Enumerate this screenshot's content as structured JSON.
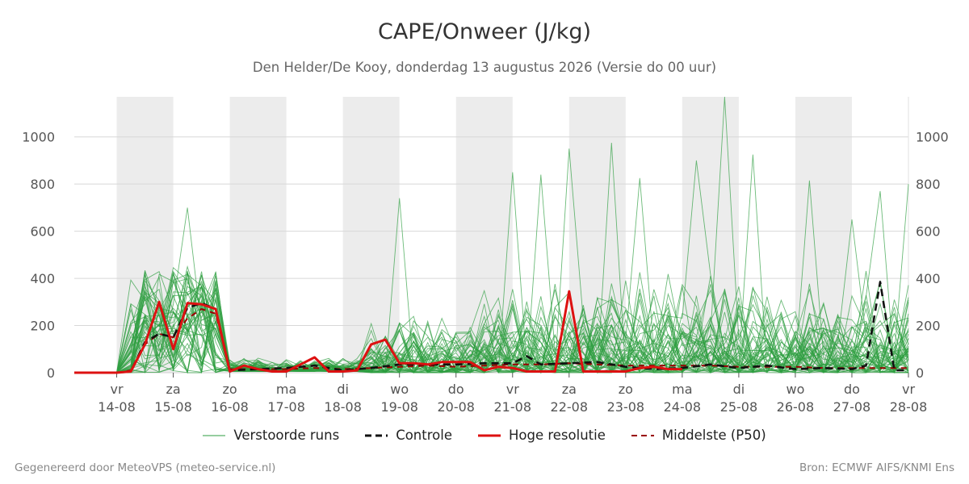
{
  "chart_data": {
    "type": "line",
    "title": "CAPE/Onweer (J/kg)",
    "subtitle": "Den Helder/De Kooy, donderdag 13 augustus 2026 (Versie do 00 uur)",
    "ylim": [
      0,
      1170
    ],
    "xlim_days": [
      -0.75,
      14.0
    ],
    "y_ticks": [
      0,
      200,
      400,
      600,
      800,
      1000
    ],
    "x_ticks": [
      {
        "day": "vr",
        "date": "14-08"
      },
      {
        "day": "za",
        "date": "15-08"
      },
      {
        "day": "zo",
        "date": "16-08"
      },
      {
        "day": "ma",
        "date": "17-08"
      },
      {
        "day": "di",
        "date": "18-08"
      },
      {
        "day": "wo",
        "date": "19-08"
      },
      {
        "day": "do",
        "date": "20-08"
      },
      {
        "day": "vr",
        "date": "21-08"
      },
      {
        "day": "za",
        "date": "22-08"
      },
      {
        "day": "zo",
        "date": "23-08"
      },
      {
        "day": "ma",
        "date": "24-08"
      },
      {
        "day": "di",
        "date": "25-08"
      },
      {
        "day": "wo",
        "date": "26-08"
      },
      {
        "day": "do",
        "date": "27-08"
      },
      {
        "day": "vr",
        "date": "28-08"
      }
    ],
    "weekend_shading": [
      [
        0,
        1
      ],
      [
        2,
        3
      ],
      [
        4,
        5
      ],
      [
        6,
        7
      ],
      [
        8,
        9
      ],
      [
        10,
        11
      ],
      [
        12,
        13
      ]
    ],
    "grid": true,
    "legend_position": "bottom",
    "series": [
      {
        "name": "Hoge resolutie",
        "color": "#dd1111",
        "x": [
          -0.75,
          -0.5,
          -0.25,
          0.0,
          0.25,
          0.5,
          0.75,
          1.0,
          1.25,
          1.5,
          1.75,
          2.0,
          2.25,
          2.5,
          2.75,
          3.0,
          3.25,
          3.5,
          3.75,
          4.0,
          4.25,
          4.5,
          4.75,
          5.0,
          5.25,
          5.5,
          5.75,
          6.0,
          6.25,
          6.5,
          6.75,
          7.0,
          7.25,
          7.5,
          7.75,
          8.0,
          8.25,
          8.5,
          8.75,
          9.0,
          9.25,
          9.5,
          9.75,
          10.0
        ],
        "values": [
          0,
          0,
          0,
          0,
          5,
          120,
          300,
          100,
          295,
          290,
          270,
          5,
          30,
          15,
          5,
          5,
          35,
          65,
          5,
          5,
          10,
          120,
          140,
          40,
          40,
          35,
          45,
          45,
          45,
          10,
          25,
          20,
          5,
          5,
          5,
          345,
          5,
          5,
          5,
          5,
          20,
          25,
          15,
          15
        ]
      },
      {
        "name": "Controle",
        "color": "#111111",
        "x": [
          -0.75,
          -0.5,
          -0.25,
          0.0,
          0.25,
          0.5,
          0.75,
          1.0,
          1.25,
          1.5,
          1.75,
          2.0,
          2.5,
          3.0,
          3.5,
          4.0,
          4.5,
          5.0,
          5.5,
          6.0,
          6.5,
          7.0,
          7.25,
          7.5,
          8.0,
          8.5,
          9.0,
          9.5,
          10.0,
          10.5,
          11.0,
          11.5,
          12.0,
          12.5,
          13.0,
          13.25,
          13.5,
          13.75,
          14.0
        ],
        "values": [
          0,
          0,
          0,
          0,
          5,
          130,
          165,
          150,
          275,
          295,
          270,
          10,
          15,
          20,
          30,
          10,
          20,
          35,
          35,
          35,
          40,
          40,
          70,
          35,
          40,
          45,
          25,
          15,
          20,
          35,
          20,
          30,
          15,
          20,
          15,
          30,
          385,
          10,
          10
        ]
      },
      {
        "name": "Middelste (P50)",
        "color": "#990000",
        "x": [
          -0.75,
          -0.5,
          -0.25,
          0.0,
          0.25,
          0.5,
          0.75,
          1.0,
          1.25,
          1.5,
          1.75,
          2.0,
          2.5,
          3.0,
          3.5,
          4.0,
          4.5,
          5.0,
          5.5,
          6.0,
          6.5,
          7.0,
          7.5,
          8.0,
          8.5,
          9.0,
          9.5,
          10.0,
          10.5,
          11.0,
          11.5,
          12.0,
          12.5,
          13.0,
          13.5,
          14.0
        ],
        "values": [
          0,
          0,
          0,
          0,
          10,
          120,
          165,
          150,
          230,
          270,
          250,
          15,
          15,
          15,
          20,
          15,
          20,
          25,
          30,
          25,
          30,
          35,
          35,
          40,
          35,
          30,
          30,
          30,
          30,
          25,
          25,
          25,
          20,
          20,
          20,
          20
        ]
      }
    ],
    "ensemble": {
      "name": "Verstoorde runs",
      "color": "#2e9e40",
      "members": 50,
      "step_days": 0.25,
      "notable_peaks": [
        {
          "x": 1.25,
          "y": 700
        },
        {
          "x": 5.0,
          "y": 740
        },
        {
          "x": 7.0,
          "y": 850
        },
        {
          "x": 7.5,
          "y": 840
        },
        {
          "x": 8.0,
          "y": 950
        },
        {
          "x": 8.75,
          "y": 975
        },
        {
          "x": 9.25,
          "y": 825
        },
        {
          "x": 10.25,
          "y": 900
        },
        {
          "x": 10.75,
          "y": 1170
        },
        {
          "x": 11.25,
          "y": 925
        },
        {
          "x": 12.25,
          "y": 815
        },
        {
          "x": 13.0,
          "y": 650
        },
        {
          "x": 13.5,
          "y": 770
        },
        {
          "x": 14.0,
          "y": 800
        }
      ]
    }
  },
  "legend": {
    "ensemble_label": "Verstoorde runs",
    "control_label": "Controle",
    "hires_label": "Hoge resolutie",
    "median_label": "Middelste (P50)"
  },
  "footer": {
    "left": "Gegenereerd door MeteoVPS (meteo-service.nl)",
    "right": "Bron: ECMWF AIFS/KNMI Ens"
  }
}
